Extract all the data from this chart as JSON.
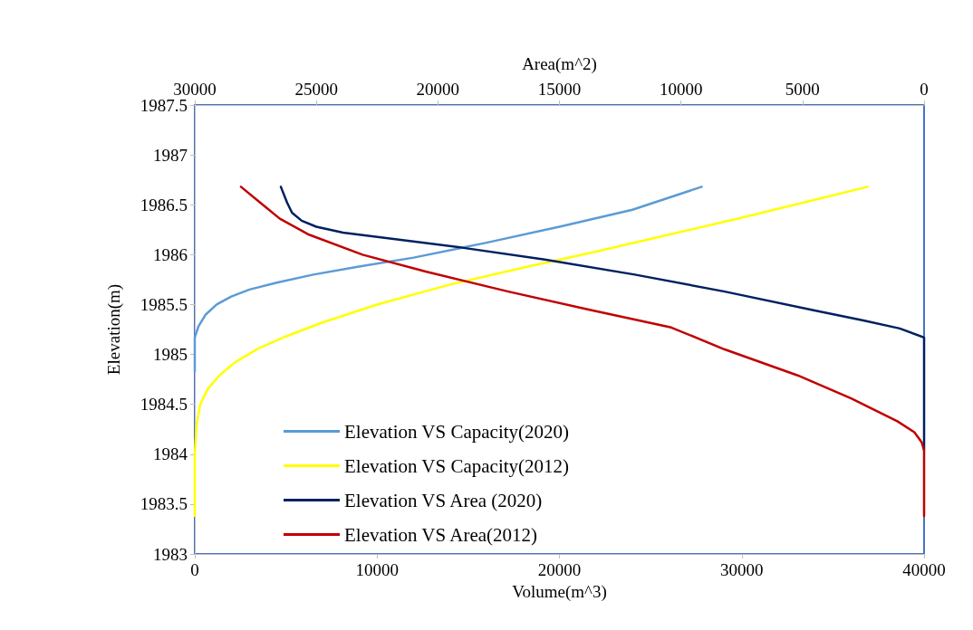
{
  "chart_data": {
    "type": "line",
    "xlabel": "Volume(m^3)",
    "ylabel": "Elevation(m)",
    "x2label": "Area(m^2)",
    "xlim": [
      0,
      40000
    ],
    "xticks": [
      0,
      10000,
      20000,
      30000,
      40000
    ],
    "x2lim": [
      30000,
      0
    ],
    "x2ticks": [
      30000,
      25000,
      20000,
      15000,
      10000,
      5000,
      0
    ],
    "ylim": [
      1983,
      1987.5
    ],
    "yticks": [
      1983,
      1983.5,
      1984,
      1984.5,
      1985,
      1985.5,
      1986,
      1986.5,
      1987,
      1987.5
    ],
    "grid": false,
    "legend": "bottom left",
    "marker": "none",
    "line_style": "solid",
    "series": [
      {
        "name": "Elevation VS Capacity(2020)",
        "color": "#5b9bd5",
        "x": [
          0,
          0,
          200,
          600,
          1200,
          2000,
          3000,
          4500,
          6500,
          9000,
          12000,
          16000,
          20000,
          24000,
          27800
        ],
        "values": [
          1984.83,
          1985.17,
          1985.28,
          1985.4,
          1985.5,
          1985.58,
          1985.65,
          1985.72,
          1985.8,
          1985.88,
          1985.97,
          1986.12,
          1986.28,
          1986.45,
          1986.68
        ]
      },
      {
        "name": "Elevation VS Capacity(2012)",
        "color": "#ffff00",
        "x": [
          0,
          0,
          100,
          300,
          700,
          1300,
          2200,
          3500,
          5000,
          7000,
          10000,
          14000,
          18000,
          22000,
          26000,
          30000,
          34000,
          36900
        ],
        "values": [
          1983.38,
          1984.0,
          1984.3,
          1984.5,
          1984.65,
          1984.78,
          1984.92,
          1985.06,
          1985.18,
          1985.32,
          1985.5,
          1985.7,
          1985.87,
          1986.03,
          1986.2,
          1986.37,
          1986.55,
          1986.68
        ]
      },
      {
        "name": "Elevation VS Area (2020)",
        "color": "#002060",
        "axis": "x2",
        "x": [
          0,
          0,
          1000,
          2500,
          4500,
          8200,
          11900,
          15600,
          19000,
          21600,
          23900,
          25000,
          25600,
          26000,
          26200,
          26460
        ],
        "values": [
          1984.04,
          1985.17,
          1985.26,
          1985.34,
          1985.44,
          1985.63,
          1985.8,
          1985.95,
          1986.07,
          1986.15,
          1986.22,
          1986.28,
          1986.34,
          1986.42,
          1986.52,
          1986.68
        ]
      },
      {
        "name": "Elevation VS Area(2012)",
        "color": "#c00000",
        "axis": "x2",
        "x": [
          0,
          0,
          100,
          400,
          1100,
          3000,
          5200,
          8200,
          10400,
          13800,
          17100,
          20500,
          23100,
          25300,
          26500,
          27200,
          28100
        ],
        "values": [
          1983.38,
          1984.04,
          1984.12,
          1984.22,
          1984.33,
          1984.56,
          1984.79,
          1985.05,
          1985.27,
          1985.45,
          1985.63,
          1985.83,
          1986.0,
          1986.2,
          1986.36,
          1986.5,
          1986.68
        ]
      }
    ]
  }
}
